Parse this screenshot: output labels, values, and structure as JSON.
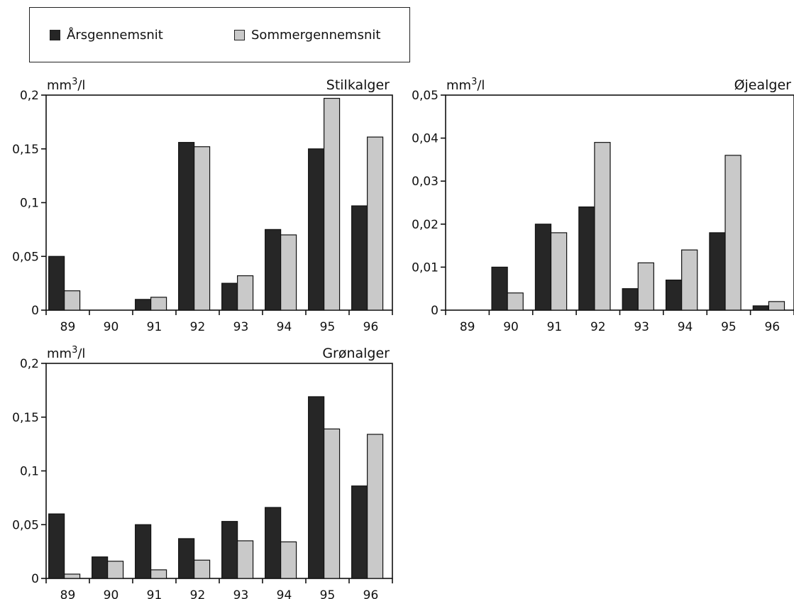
{
  "legend": {
    "annual": "Årsgennemsnit",
    "summer": "Sommergennemsnit"
  },
  "colors": {
    "annual": "#262626",
    "summer": "#c9c9c9",
    "axis": "#111111"
  },
  "chart_data": [
    {
      "type": "bar",
      "title": "Stilkalger",
      "ylabel_prefix": "mm",
      "ylabel_sup": "3",
      "ylabel_suffix": "/l",
      "categories": [
        "89",
        "90",
        "91",
        "92",
        "93",
        "94",
        "95",
        "96"
      ],
      "ylim": [
        0,
        0.2
      ],
      "yticks": [
        0,
        0.05,
        0.1,
        0.15,
        0.2
      ],
      "ytick_labels": [
        "0",
        "0,05",
        "0,1",
        "0,15",
        "0,2"
      ],
      "series": [
        {
          "name": "Årsgennemsnit",
          "values": [
            0.05,
            0,
            0.01,
            0.156,
            0.025,
            0.075,
            0.15,
            0.097
          ]
        },
        {
          "name": "Sommergennemsnit",
          "values": [
            0.018,
            0,
            0.012,
            0.152,
            0.032,
            0.07,
            0.197,
            0.161
          ]
        }
      ]
    },
    {
      "type": "bar",
      "title": "Øjealger",
      "ylabel_prefix": "mm",
      "ylabel_sup": "3",
      "ylabel_suffix": "/l",
      "categories": [
        "89",
        "90",
        "91",
        "92",
        "93",
        "94",
        "95",
        "96"
      ],
      "ylim": [
        0,
        0.05
      ],
      "yticks": [
        0,
        0.01,
        0.02,
        0.03,
        0.04,
        0.05
      ],
      "ytick_labels": [
        "0",
        "0,01",
        "0,02",
        "0,03",
        "0,04",
        "0,05"
      ],
      "series": [
        {
          "name": "Årsgennemsnit",
          "values": [
            0,
            0.01,
            0.02,
            0.024,
            0.005,
            0.007,
            0.018,
            0.001
          ]
        },
        {
          "name": "Sommergennemsnit",
          "values": [
            0,
            0.004,
            0.018,
            0.039,
            0.011,
            0.014,
            0.036,
            0.002
          ]
        }
      ]
    },
    {
      "type": "bar",
      "title": "Grønalger",
      "ylabel_prefix": "mm",
      "ylabel_sup": "3",
      "ylabel_suffix": "/l",
      "categories": [
        "89",
        "90",
        "91",
        "92",
        "93",
        "94",
        "95",
        "96"
      ],
      "ylim": [
        0,
        0.2
      ],
      "yticks": [
        0,
        0.05,
        0.1,
        0.15,
        0.2
      ],
      "ytick_labels": [
        "0",
        "0,05",
        "0,1",
        "0,15",
        "0,2"
      ],
      "series": [
        {
          "name": "Årsgennemsnit",
          "values": [
            0.06,
            0.02,
            0.05,
            0.037,
            0.053,
            0.066,
            0.169,
            0.086
          ]
        },
        {
          "name": "Sommergennemsnit",
          "values": [
            0.004,
            0.016,
            0.008,
            0.017,
            0.035,
            0.034,
            0.139,
            0.134
          ]
        }
      ]
    }
  ]
}
